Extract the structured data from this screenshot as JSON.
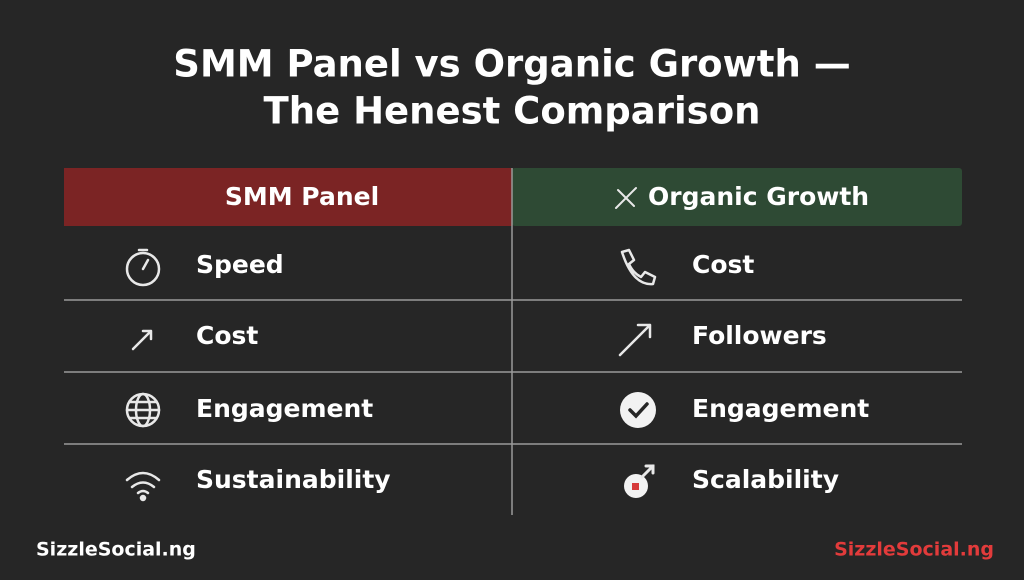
{
  "title": {
    "line1": "SMM Panel vs Organic Growth —",
    "line2": "The Henest Comparison"
  },
  "table": {
    "headers": [
      "SMM Panel",
      "Organic Growth"
    ],
    "rows": [
      [
        "Speed",
        "Cost"
      ],
      [
        "Cost",
        "Followers"
      ],
      [
        "Engagement",
        "Engagement"
      ],
      [
        "Sustainability",
        "Scalability"
      ]
    ]
  },
  "footer": {
    "left": "SizzleSocial.ng",
    "right": "SizzleSocial.ng"
  }
}
